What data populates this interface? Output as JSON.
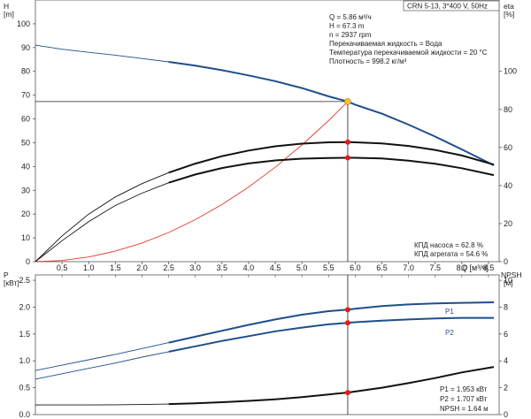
{
  "header": {
    "pump_label": "CRN 5-13, 3*400 V, 50Hz"
  },
  "colors": {
    "blue": "#1f4e8c",
    "black": "#111111",
    "red_curve": "#e8392b",
    "marker_red": "#e41a1c",
    "marker_yellow": "#f5c430",
    "crosshair": "#222222"
  },
  "chart_data": [
    {
      "type": "line",
      "title": "",
      "x_axis": {
        "label": "Q [м³/ч]",
        "range": [
          0,
          8.7
        ],
        "ticks": [
          0.5,
          1.0,
          1.5,
          2.0,
          2.5,
          3.0,
          3.5,
          4.0,
          4.5,
          5.0,
          5.5,
          6.0,
          6.5,
          7.0,
          7.5,
          8.0,
          8.5
        ],
        "tick_labels": [
          "0.5",
          "1.0",
          "1.5",
          "2.0",
          "2.5",
          "3.0",
          "3.5",
          "4.0",
          "4.5",
          "5.0",
          "5.5",
          "6.0",
          "6.5",
          "7.0",
          "7.5",
          "8.0",
          "8.5"
        ]
      },
      "y_axis_left": {
        "label": "H",
        "unit": "[m]",
        "range": [
          0,
          110
        ],
        "ticks": [
          0,
          10,
          20,
          30,
          40,
          50,
          60,
          70,
          80,
          90,
          100
        ],
        "tick_labels": [
          "0",
          "10",
          "20",
          "30",
          "40",
          "50",
          "60",
          "70",
          "80",
          "90",
          "100"
        ]
      },
      "y_axis_right": {
        "label": "eta",
        "unit": "[%]",
        "range": [
          0,
          137.5
        ],
        "ticks": [
          0,
          20,
          40,
          60,
          80,
          100
        ],
        "tick_labels": [
          "0",
          "20",
          "40",
          "60",
          "80",
          "100"
        ]
      },
      "grid": false,
      "series": [
        {
          "key": "head",
          "axis": "left",
          "color": "#1f4e8c",
          "thin_until_x": 2.5,
          "x": [
            0,
            0.5,
            1.0,
            1.5,
            2.0,
            2.5,
            3.0,
            3.5,
            4.0,
            4.5,
            5.0,
            5.5,
            5.86,
            6.0,
            6.5,
            7.0,
            7.5,
            8.0,
            8.6
          ],
          "y": [
            91.0,
            89.3,
            88.0,
            86.8,
            85.4,
            84.0,
            82.4,
            80.5,
            78.3,
            75.9,
            73.0,
            69.5,
            67.3,
            66.0,
            62.2,
            57.6,
            52.6,
            47.2,
            40.5
          ]
        },
        {
          "key": "system_curve",
          "axis": "left",
          "color": "#e8392b",
          "thin_until_x": 99,
          "x": [
            0,
            0.5,
            1.0,
            1.5,
            2.0,
            2.5,
            3.0,
            3.5,
            4.0,
            4.5,
            5.0,
            5.5,
            5.86
          ],
          "y": [
            0,
            0.49,
            1.96,
            4.41,
            7.84,
            12.25,
            17.64,
            24.0,
            31.36,
            39.69,
            49.0,
            59.29,
            67.3
          ]
        },
        {
          "key": "eta_pump",
          "axis": "right",
          "color": "#111111",
          "thin_until_x": 2.5,
          "x": [
            0,
            0.5,
            1.0,
            1.5,
            2.0,
            2.5,
            3.0,
            3.5,
            4.0,
            4.5,
            5.0,
            5.5,
            5.86,
            6.0,
            6.5,
            7.0,
            7.5,
            8.0,
            8.6
          ],
          "y": [
            0,
            13.5,
            25.0,
            34.0,
            41.0,
            46.8,
            51.5,
            55.4,
            58.4,
            60.6,
            62.0,
            62.7,
            62.8,
            62.7,
            62.1,
            60.8,
            58.7,
            55.8,
            51.0
          ]
        },
        {
          "key": "eta_unit",
          "axis": "right",
          "color": "#111111",
          "thin_until_x": 2.5,
          "x": [
            0,
            0.5,
            1.0,
            1.5,
            2.0,
            2.5,
            3.0,
            3.5,
            4.0,
            4.5,
            5.0,
            5.5,
            5.86,
            6.0,
            6.5,
            7.0,
            7.5,
            8.0,
            8.6
          ],
          "y": [
            0,
            11.0,
            21.0,
            29.5,
            36.0,
            41.5,
            45.8,
            49.2,
            51.6,
            53.2,
            54.1,
            54.5,
            54.6,
            54.6,
            54.2,
            53.1,
            51.4,
            49.1,
            45.5
          ]
        }
      ],
      "operating_point": {
        "Q": 5.86,
        "H": 67.3,
        "eta_pump": 62.8,
        "eta_unit": 54.6
      },
      "info_lines": [
        "Q = 5.86 м³/ч",
        "H = 67.3 m",
        "n = 2937 rpm",
        "Перекачиваемая жидкость = Вода",
        "Температура перекачиваемой жидкости = 20 °C",
        "Плотность = 998.2 кг/м³"
      ],
      "efficiency_lines": [
        "КПД насоса = 62.8 %",
        "КПД агрегата = 54.6 %"
      ]
    },
    {
      "type": "line",
      "title": "",
      "x_axis": {
        "range": [
          0,
          8.7
        ]
      },
      "y_axis_left": {
        "label": "P",
        "unit": "[кВт]",
        "range": [
          0,
          2.6
        ],
        "ticks": [
          0,
          0.5,
          1.0,
          1.5,
          2.0,
          2.5
        ],
        "tick_labels": [
          "0.0",
          "0.5",
          "1.0",
          "1.5",
          "2.0",
          "2.5"
        ]
      },
      "y_axis_right": {
        "label": "NPSH",
        "unit": "[м]",
        "range": [
          0,
          10.4
        ],
        "ticks": [
          0,
          2,
          4,
          6,
          8,
          10
        ],
        "tick_labels": [
          "0",
          "2",
          "4",
          "6",
          "8",
          "10"
        ]
      },
      "grid": false,
      "series": [
        {
          "key": "P1",
          "name": "P1",
          "axis": "left",
          "color": "#1f4e8c",
          "thin_until_x": 2.5,
          "x": [
            0,
            0.5,
            1.0,
            1.5,
            2.0,
            2.5,
            3.0,
            3.5,
            4.0,
            4.5,
            5.0,
            5.5,
            5.86,
            6.0,
            6.5,
            7.0,
            7.5,
            8.0,
            8.6
          ],
          "y": [
            0.82,
            0.92,
            1.02,
            1.12,
            1.23,
            1.34,
            1.45,
            1.56,
            1.67,
            1.77,
            1.86,
            1.925,
            1.953,
            1.97,
            2.02,
            2.05,
            2.07,
            2.08,
            2.09
          ]
        },
        {
          "key": "P2",
          "name": "P2",
          "axis": "left",
          "color": "#1f4e8c",
          "thin_until_x": 2.5,
          "x": [
            0,
            0.5,
            1.0,
            1.5,
            2.0,
            2.5,
            3.0,
            3.5,
            4.0,
            4.5,
            5.0,
            5.5,
            5.86,
            6.0,
            6.5,
            7.0,
            7.5,
            8.0,
            8.6
          ],
          "y": [
            0.66,
            0.76,
            0.86,
            0.96,
            1.07,
            1.17,
            1.27,
            1.37,
            1.46,
            1.55,
            1.62,
            1.68,
            1.707,
            1.72,
            1.75,
            1.77,
            1.79,
            1.8,
            1.8
          ]
        },
        {
          "key": "npsh",
          "axis": "right",
          "color": "#111111",
          "thin_until_x": 2.5,
          "x": [
            0,
            0.5,
            1.0,
            1.5,
            2.0,
            2.5,
            3.0,
            3.5,
            4.0,
            4.5,
            5.0,
            5.5,
            5.86,
            6.0,
            6.5,
            7.0,
            7.5,
            8.0,
            8.6
          ],
          "y": [
            0.72,
            0.72,
            0.72,
            0.73,
            0.75,
            0.78,
            0.84,
            0.92,
            1.02,
            1.14,
            1.3,
            1.5,
            1.64,
            1.72,
            2.0,
            2.34,
            2.72,
            3.14,
            3.55
          ]
        }
      ],
      "operating_point": {
        "Q": 5.86,
        "P1": 1.953,
        "P2": 1.707,
        "NPSH": 1.64
      },
      "info_lines": [
        "P1 = 1.953 кВт",
        "P2 = 1.707 кВт",
        "NPSH = 1.64 м"
      ]
    }
  ]
}
